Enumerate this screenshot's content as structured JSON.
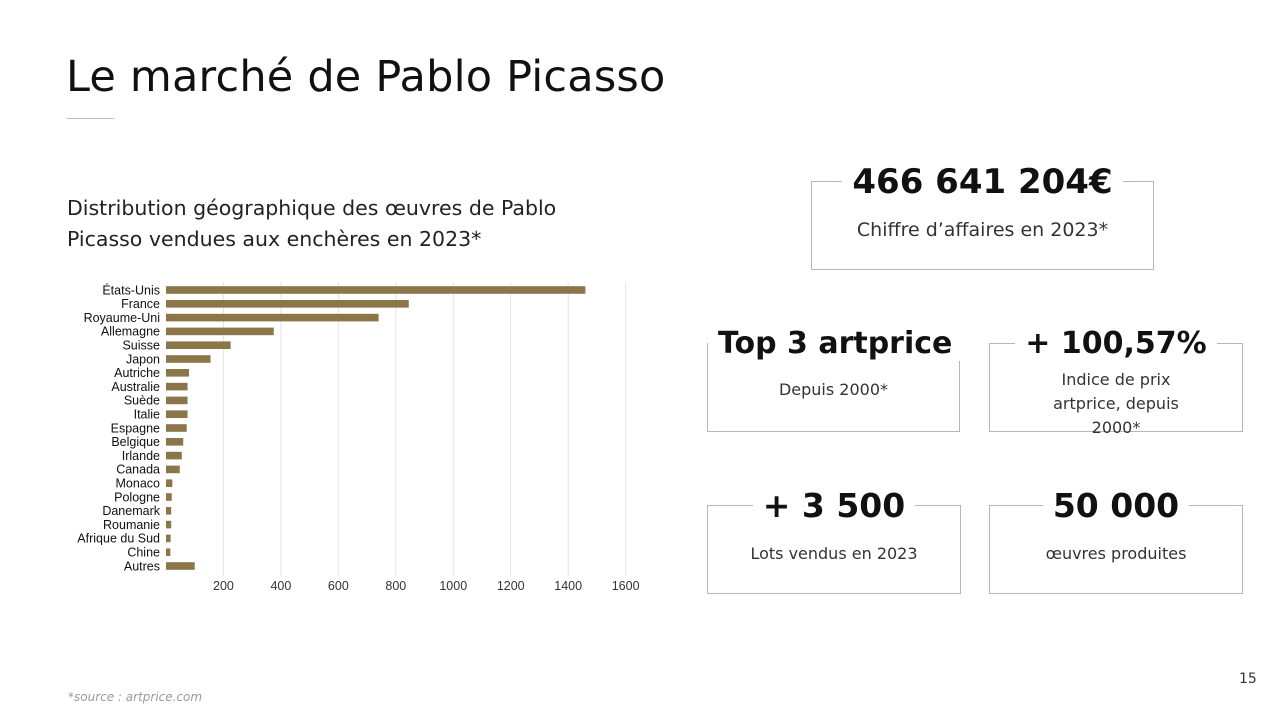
{
  "slide": {
    "title": "Le marché de Pablo Picasso",
    "subtitle": "Distribution géographique des œuvres de Pablo Picasso vendues aux enchères en 2023*",
    "footnote": "*source : artprice.com",
    "page_number": "15"
  },
  "stats": {
    "turnover": {
      "value": "466 641 204€",
      "label": "Chiffre d’affaires en 2023*"
    },
    "top3": {
      "value": "Top 3 artprice",
      "label": "Depuis 2000*"
    },
    "price_index": {
      "value": "+ 100,57%",
      "label": "Indice de prix artprice, depuis 2000*"
    },
    "lots": {
      "value": "+ 3 500",
      "label": "Lots vendus en 2023"
    },
    "works": {
      "value": "50 000",
      "label": "œuvres produites"
    }
  },
  "colors": {
    "bar": "#8a7648",
    "grid": "#e4e4e4",
    "box_border": "#bcb6ae"
  },
  "chart_data": {
    "type": "bar",
    "orientation": "horizontal",
    "categories": [
      "États-Unis",
      "France",
      "Royaume-Uni",
      "Allemagne",
      "Suisse",
      "Japon",
      "Autriche",
      "Australie",
      "Suède",
      "Italie",
      "Espagne",
      "Belgique",
      "Irlande",
      "Canada",
      "Monaco",
      "Pologne",
      "Danemark",
      "Roumanie",
      "Afrique du Sud",
      "Chine",
      "Autres"
    ],
    "values": [
      1460,
      845,
      740,
      375,
      225,
      155,
      80,
      75,
      75,
      75,
      72,
      60,
      55,
      48,
      22,
      20,
      18,
      18,
      16,
      15,
      100
    ],
    "xticks": [
      200,
      400,
      600,
      800,
      1000,
      1200,
      1400,
      1600
    ],
    "xlim": [
      0,
      1650
    ],
    "grid": true,
    "title": "",
    "xlabel": "",
    "ylabel": ""
  }
}
